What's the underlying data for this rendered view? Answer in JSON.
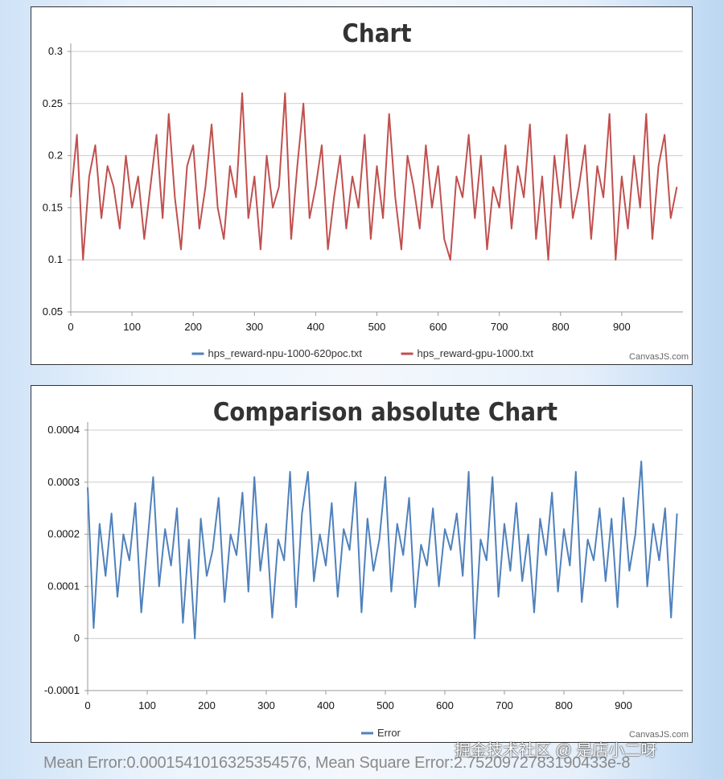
{
  "chart_data": [
    {
      "type": "line",
      "title": "Chart",
      "xlabel": "",
      "ylabel": "",
      "xlim": [
        0,
        1000
      ],
      "ylim": [
        0.05,
        0.3
      ],
      "x_ticks": [
        "0",
        "100",
        "200",
        "300",
        "400",
        "500",
        "600",
        "700",
        "800",
        "900"
      ],
      "y_ticks": [
        "0.05",
        "0.1",
        "0.15",
        "0.2",
        "0.25",
        "0.3"
      ],
      "grid": true,
      "legend_position": "bottom-center",
      "x_step": 10,
      "series": [
        {
          "name": "hps_reward-npu-1000-620poc.txt",
          "color": "#4f81bc",
          "values": []
        },
        {
          "name": "hps_reward-gpu-1000.txt",
          "color": "#c0504e",
          "values": [
            0.16,
            0.22,
            0.1,
            0.18,
            0.21,
            0.14,
            0.19,
            0.17,
            0.13,
            0.2,
            0.15,
            0.18,
            0.12,
            0.17,
            0.22,
            0.14,
            0.24,
            0.16,
            0.11,
            0.19,
            0.21,
            0.13,
            0.17,
            0.23,
            0.15,
            0.12,
            0.19,
            0.16,
            0.26,
            0.14,
            0.18,
            0.11,
            0.2,
            0.15,
            0.17,
            0.26,
            0.12,
            0.19,
            0.25,
            0.14,
            0.17,
            0.21,
            0.11,
            0.16,
            0.2,
            0.13,
            0.18,
            0.15,
            0.22,
            0.12,
            0.19,
            0.14,
            0.24,
            0.16,
            0.11,
            0.2,
            0.17,
            0.13,
            0.21,
            0.15,
            0.19,
            0.12,
            0.1,
            0.18,
            0.16,
            0.22,
            0.14,
            0.2,
            0.11,
            0.17,
            0.15,
            0.21,
            0.13,
            0.19,
            0.16,
            0.23,
            0.12,
            0.18,
            0.1,
            0.2,
            0.15,
            0.22,
            0.14,
            0.17,
            0.21,
            0.12,
            0.19,
            0.16,
            0.24,
            0.1,
            0.18,
            0.13,
            0.2,
            0.15,
            0.24,
            0.12,
            0.19,
            0.22,
            0.14,
            0.17
          ]
        }
      ],
      "credit": "CanvasJS.com"
    },
    {
      "type": "line",
      "title": "Comparison absolute Chart",
      "xlabel": "",
      "ylabel": "",
      "xlim": [
        0,
        1000
      ],
      "ylim": [
        -0.0001,
        0.0004
      ],
      "x_ticks": [
        "0",
        "100",
        "200",
        "300",
        "400",
        "500",
        "600",
        "700",
        "800",
        "900"
      ],
      "y_ticks": [
        "-0.0001",
        "0",
        "0.0001",
        "0.0002",
        "0.0003",
        "0.0004"
      ],
      "grid": true,
      "legend_position": "bottom-center",
      "x_step": 10,
      "series": [
        {
          "name": "Error",
          "color": "#4f81bc",
          "values": [
            0.00029,
            2e-05,
            0.00022,
            0.00012,
            0.00024,
            8e-05,
            0.0002,
            0.00015,
            0.00026,
            5e-05,
            0.00018,
            0.00031,
            0.0001,
            0.00021,
            0.00014,
            0.00025,
            3e-05,
            0.00019,
            0.0,
            0.00023,
            0.00012,
            0.00017,
            0.00027,
            7e-05,
            0.0002,
            0.00016,
            0.00028,
            9e-05,
            0.00031,
            0.00013,
            0.00022,
            4e-05,
            0.00019,
            0.00015,
            0.00032,
            6e-05,
            0.00024,
            0.00032,
            0.00011,
            0.0002,
            0.00014,
            0.00026,
            8e-05,
            0.00021,
            0.00017,
            0.0003,
            5e-05,
            0.00023,
            0.00013,
            0.00019,
            0.00031,
            9e-05,
            0.00022,
            0.00016,
            0.00027,
            6e-05,
            0.00018,
            0.00014,
            0.00025,
            0.0001,
            0.00021,
            0.00017,
            0.00024,
            0.00012,
            0.00032,
            0.0,
            0.00019,
            0.00015,
            0.00031,
            8e-05,
            0.00022,
            0.00013,
            0.00026,
            0.00011,
            0.0002,
            5e-05,
            0.00023,
            0.00016,
            0.00028,
            9e-05,
            0.00021,
            0.00014,
            0.00032,
            7e-05,
            0.00019,
            0.00015,
            0.00025,
            0.00011,
            0.00023,
            6e-05,
            0.00027,
            0.00013,
            0.0002,
            0.00034,
            0.0001,
            0.00022,
            0.00015,
            0.00025,
            4e-05,
            0.00024
          ]
        }
      ],
      "credit": "CanvasJS.com"
    }
  ],
  "footer": "Mean Error:0.0001541016325354576, Mean Square Error:2.7520972783190433e-8",
  "watermark": "掘金技术社区 @ 是店小二呀"
}
